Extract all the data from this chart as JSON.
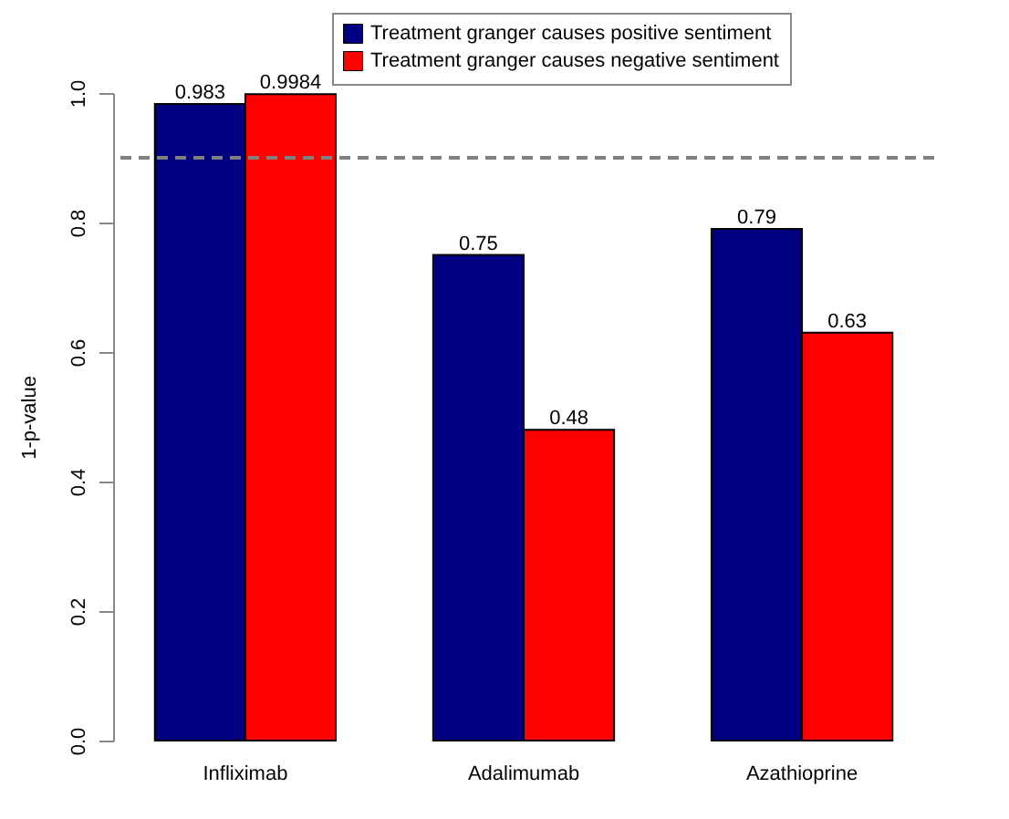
{
  "chart_data": {
    "type": "bar",
    "ylabel": "1-p-value",
    "categories": [
      "Infliximab",
      "Adalimumab",
      "Azathioprine"
    ],
    "series": [
      {
        "name": "Treatment granger causes positive sentiment",
        "color": "#000080",
        "values": [
          0.983,
          0.75,
          0.79
        ]
      },
      {
        "name": "Treatment granger causes negative sentiment",
        "color": "#ff0000",
        "values": [
          0.9984,
          0.48,
          0.63
        ]
      }
    ],
    "ylim": [
      0,
      1
    ],
    "yticks": [
      {
        "value": 0,
        "label": "0.0"
      },
      0.2,
      0.4,
      0.6,
      0.8,
      {
        "value": 1,
        "label": "1.0"
      }
    ],
    "ref_lines": [
      {
        "axis": "y",
        "value": 0.9,
        "color": "#808080",
        "line_style": "dashed"
      }
    ],
    "data_labels": true,
    "legend": "top right"
  }
}
